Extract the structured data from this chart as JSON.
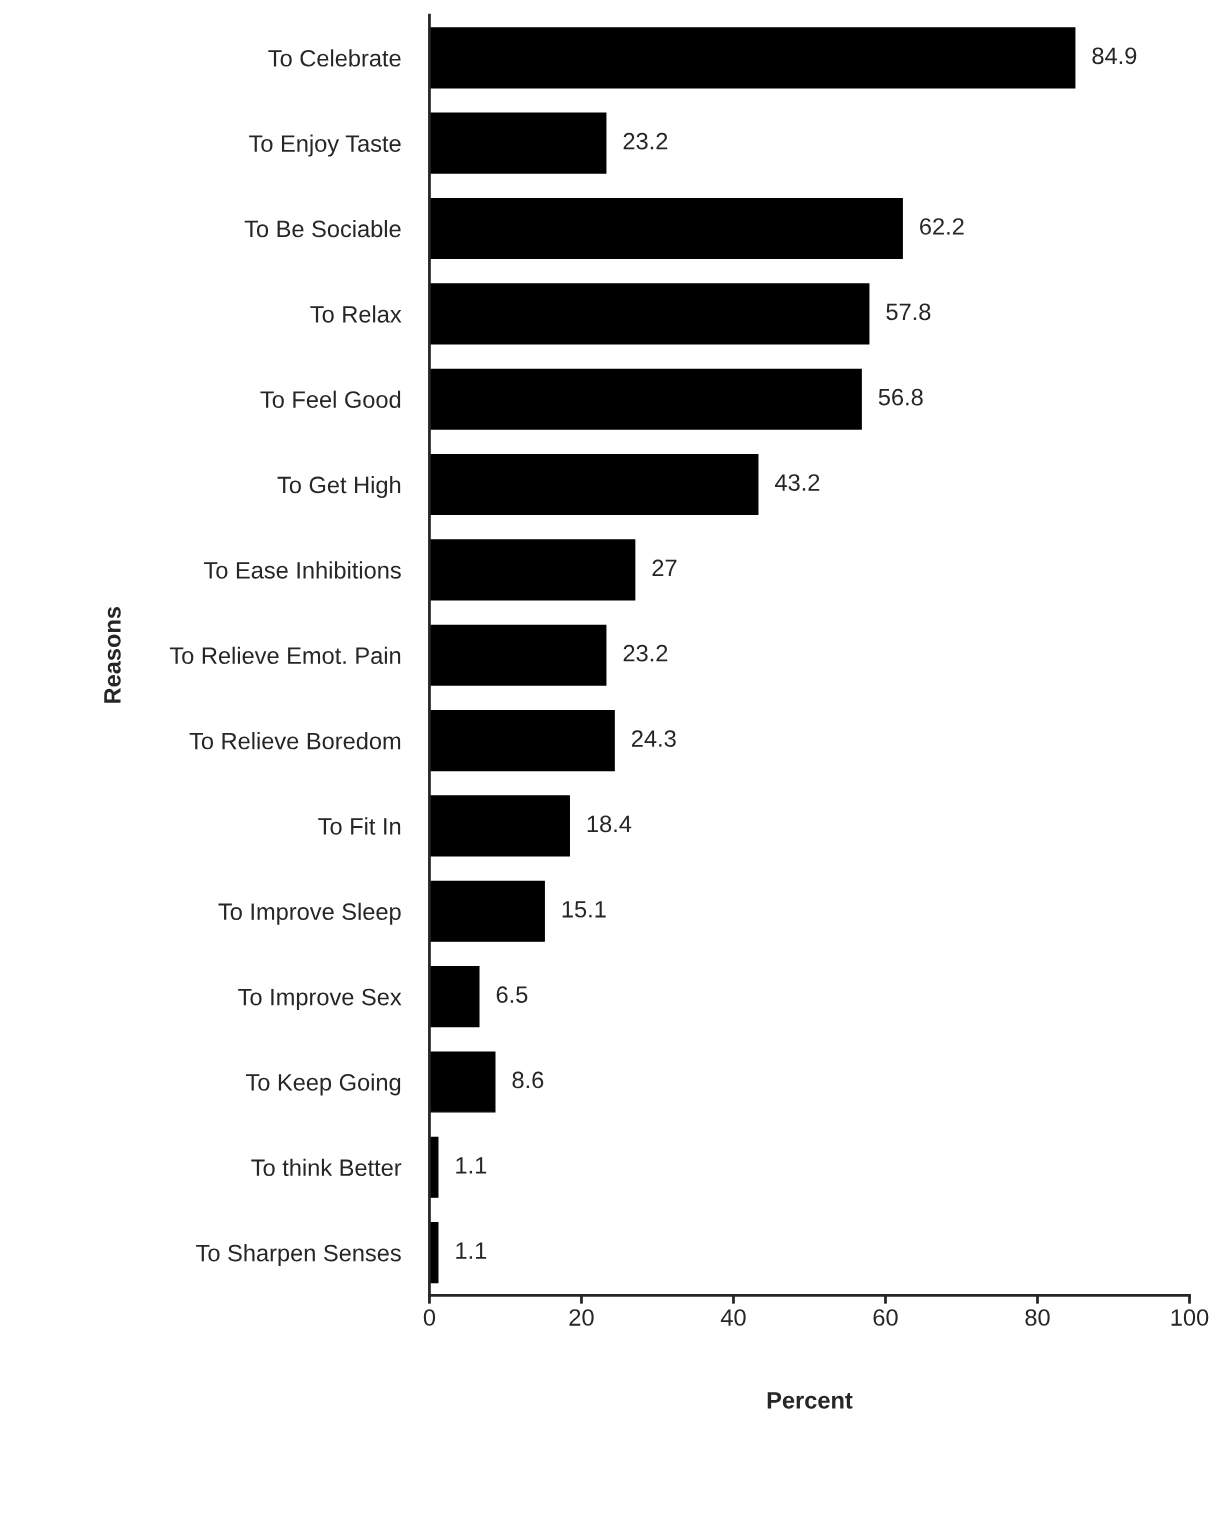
{
  "chart_data": {
    "type": "bar",
    "orientation": "horizontal",
    "xlabel": "Percent",
    "ylabel": "Reasons",
    "categories": [
      "To Celebrate",
      "To Enjoy Taste",
      "To Be Sociable",
      "To Relax",
      "To Feel Good",
      "To Get High",
      "To Ease Inhibitions",
      "To Relieve Emot. Pain",
      "To Relieve Boredom",
      "To Fit In",
      "To Improve Sleep",
      "To Improve Sex",
      "To Keep Going",
      "To think Better",
      "To Sharpen Senses"
    ],
    "values": [
      84.9,
      23.2,
      62.2,
      57.8,
      56.8,
      43.2,
      27,
      23.2,
      24.3,
      18.4,
      15.1,
      6.5,
      8.6,
      1.1,
      1.1
    ],
    "color": "#000000",
    "xlim": [
      0,
      100
    ],
    "xticks": [
      0,
      20,
      40,
      60,
      80,
      100
    ],
    "data_labels": true,
    "grid": false
  }
}
